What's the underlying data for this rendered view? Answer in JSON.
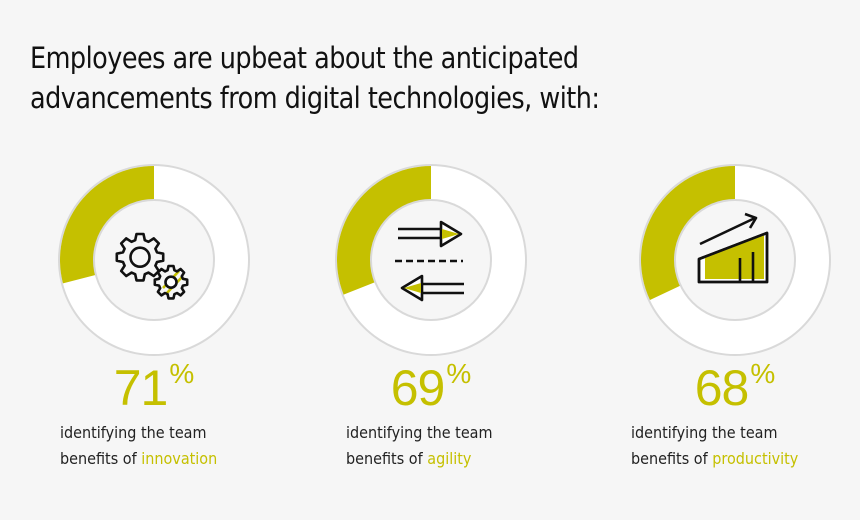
{
  "title": {
    "line1": "Employees are upbeat about the anticipated",
    "line2": "advancements from digital technologies, with:"
  },
  "colors": {
    "accent": "#c5c000",
    "ring_track": "#ffffff",
    "ring_border": "#d9d9d9",
    "background": "#f6f6f6",
    "text": "#222222"
  },
  "stats": [
    {
      "value": "71",
      "unit": "%",
      "line1": "identifying the team",
      "line2_prefix": "benefits of ",
      "line2_highlight": "innovation",
      "icon": "gears-icon"
    },
    {
      "value": "69",
      "unit": "%",
      "line1": "identifying the team",
      "line2_prefix": "benefits of ",
      "line2_highlight": "agility",
      "icon": "transfer-arrows-icon"
    },
    {
      "value": "68",
      "unit": "%",
      "line1": "identifying the team",
      "line2_prefix": "benefits of ",
      "line2_highlight": "productivity",
      "icon": "growth-chart-icon"
    }
  ],
  "chart_data": {
    "type": "pie",
    "subtype": "donut",
    "title": "Employees are upbeat about the anticipated advancements from digital technologies, with:",
    "categories": [
      "innovation",
      "agility",
      "productivity"
    ],
    "values": [
      71,
      69,
      68
    ],
    "unit": "%",
    "drawn_arc_fractions": [
      0.29,
      0.31,
      0.32
    ],
    "arc_start": "12 o'clock",
    "arc_direction": "counter-clockwise",
    "legend": "none",
    "grid": false
  }
}
